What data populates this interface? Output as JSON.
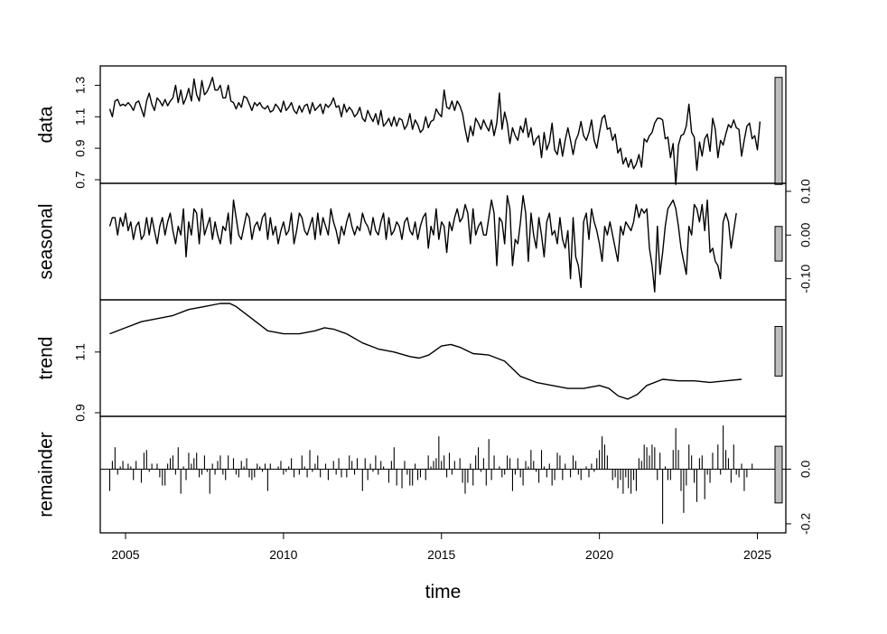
{
  "chart_data": {
    "type": "line",
    "xlabel": "time",
    "x_ticks": [
      2005,
      2010,
      2015,
      2020,
      2025
    ],
    "x_range": [
      2004.2,
      2025.9
    ],
    "start": 2004.5,
    "frequency": 12,
    "panels": [
      {
        "name": "data",
        "ylim": [
          0.7,
          1.4
        ],
        "yticks": [
          0.7,
          0.9,
          1.1,
          1.3
        ],
        "ytick_labels": [
          "0.7",
          "0.9",
          "1.1",
          "1.3"
        ],
        "tick_side": "left",
        "values": [
          1.15,
          1.1,
          1.2,
          1.21,
          1.17,
          1.18,
          1.17,
          1.19,
          1.17,
          1.14,
          1.19,
          1.2,
          1.15,
          1.1,
          1.2,
          1.25,
          1.18,
          1.14,
          1.22,
          1.2,
          1.17,
          1.21,
          1.17,
          1.2,
          1.22,
          1.3,
          1.19,
          1.27,
          1.18,
          1.22,
          1.28,
          1.2,
          1.34,
          1.24,
          1.2,
          1.33,
          1.24,
          1.26,
          1.3,
          1.35,
          1.27,
          1.27,
          1.3,
          1.22,
          1.22,
          1.3,
          1.2,
          1.19,
          1.15,
          1.19,
          1.16,
          1.23,
          1.22,
          1.18,
          1.14,
          1.19,
          1.17,
          1.19,
          1.16,
          1.15,
          1.17,
          1.13,
          1.14,
          1.18,
          1.16,
          1.13,
          1.2,
          1.14,
          1.16,
          1.19,
          1.14,
          1.12,
          1.17,
          1.13,
          1.17,
          1.18,
          1.12,
          1.19,
          1.14,
          1.16,
          1.18,
          1.12,
          1.18,
          1.16,
          1.18,
          1.22,
          1.16,
          1.17,
          1.1,
          1.18,
          1.13,
          1.16,
          1.14,
          1.1,
          1.12,
          1.16,
          1.09,
          1.07,
          1.14,
          1.1,
          1.07,
          1.12,
          1.05,
          1.14,
          1.04,
          1.06,
          1.09,
          1.04,
          1.1,
          1.04,
          1.09,
          1.08,
          1.02,
          1.05,
          1.12,
          1.02,
          1.08,
          1.05,
          1.0,
          1.02,
          1.1,
          1.03,
          1.07,
          1.08,
          1.15,
          1.12,
          1.1,
          1.27,
          1.16,
          1.15,
          1.2,
          1.14,
          1.2,
          1.17,
          1.12,
          1.02,
          0.94,
          1.04,
          0.98,
          1.09,
          1.06,
          1.02,
          1.08,
          1.04,
          1.01,
          1.08,
          0.98,
          1.06,
          1.25,
          1.02,
          1.13,
          1.06,
          0.93,
          1.03,
          0.98,
          0.95,
          1.04,
          1.0,
          1.09,
          0.97,
          1.03,
          0.92,
          0.96,
          0.98,
          0.84,
          1.0,
          0.89,
          0.94,
          1.06,
          0.89,
          0.86,
          0.96,
          0.85,
          0.95,
          1.03,
          0.95,
          0.86,
          0.95,
          0.99,
          1.07,
          0.98,
          0.95,
          1.0,
          1.08,
          0.95,
          0.9,
          1.0,
          1.09,
          1.11,
          1.02,
          1.03,
          0.95,
          0.99,
          0.87,
          0.9,
          0.8,
          0.84,
          0.78,
          0.83,
          0.77,
          0.8,
          0.86,
          0.78,
          0.96,
          0.94,
          0.98,
          1.0,
          1.06,
          1.09,
          1.09,
          1.08,
          0.96,
          0.97,
          0.84,
          0.93,
          0.67,
          0.92,
          0.98,
          0.99,
          1.04,
          1.18,
          1.0,
          0.97,
          0.76,
          0.94,
          0.85,
          0.96,
          0.99,
          0.88,
          1.09,
          1.02,
          0.84,
          0.95,
          0.92,
          0.99,
          1.05,
          1.03,
          1.08,
          1.03,
          1.02,
          0.85,
          0.95,
          1.04,
          1.06,
          0.96,
          0.98,
          0.89,
          1.07
        ]
      },
      {
        "name": "seasonal",
        "ylim": [
          -0.14,
          0.11
        ],
        "yticks": [
          -0.1,
          0.0,
          0.1
        ],
        "ytick_labels": [
          "-0.10",
          "0.00",
          "0.10"
        ],
        "tick_side": "right",
        "values": [
          0.02,
          0.04,
          0.04,
          0.0,
          0.04,
          0.02,
          0.05,
          0.01,
          0.03,
          -0.01,
          0.02,
          0.03,
          -0.01,
          0.0,
          0.04,
          0.0,
          0.04,
          0.01,
          -0.02,
          0.02,
          0.04,
          0.0,
          0.03,
          0.05,
          0.01,
          -0.02,
          0.02,
          0.0,
          0.06,
          -0.05,
          0.03,
          0.0,
          0.06,
          0.05,
          -0.02,
          0.06,
          0.0,
          0.02,
          0.04,
          -0.01,
          0.03,
          0.0,
          -0.02,
          0.02,
          0.01,
          0.05,
          -0.02,
          0.08,
          0.04,
          0.0,
          -0.01,
          0.02,
          0.05,
          0.04,
          -0.01,
          0.02,
          0.03,
          0.01,
          0.04,
          0.05,
          -0.01,
          0.04,
          0.0,
          0.02,
          -0.02,
          0.01,
          0.03,
          0.0,
          0.01,
          0.05,
          -0.02,
          0.01,
          0.05,
          0.04,
          0.01,
          0.0,
          0.02,
          0.04,
          -0.01,
          0.05,
          0.0,
          0.04,
          0.02,
          0.0,
          0.06,
          0.03,
          0.01,
          -0.02,
          0.02,
          0.0,
          0.03,
          0.05,
          0.02,
          0.0,
          0.02,
          0.01,
          0.05,
          0.03,
          0.02,
          0.0,
          0.04,
          0.01,
          0.0,
          0.03,
          0.05,
          -0.01,
          0.04,
          0.0,
          0.01,
          0.03,
          0.02,
          -0.01,
          0.03,
          0.04,
          0.01,
          0.0,
          0.03,
          -0.01,
          0.02,
          0.04,
          0.05,
          -0.03,
          0.02,
          0.0,
          0.06,
          -0.01,
          0.03,
          0.02,
          -0.04,
          0.03,
          0.01,
          0.04,
          0.06,
          0.03,
          0.04,
          0.07,
          0.05,
          -0.02,
          0.06,
          0.0,
          0.02,
          0.03,
          0.0,
          0.0,
          0.04,
          0.08,
          0.05,
          -0.07,
          0.04,
          0.03,
          -0.02,
          0.09,
          0.06,
          -0.07,
          -0.01,
          -0.02,
          0.03,
          0.09,
          0.05,
          -0.06,
          0.05,
          0.0,
          -0.03,
          0.04,
          0.0,
          -0.05,
          0.03,
          0.05,
          0.0,
          0.01,
          -0.02,
          0.04,
          -0.01,
          -0.03,
          0.01,
          -0.1,
          0.04,
          -0.05,
          -0.07,
          -0.12,
          0.03,
          0.05,
          -0.01,
          0.06,
          0.03,
          0.01,
          -0.02,
          -0.06,
          0.02,
          0.0,
          0.03,
          0.0,
          -0.03,
          -0.06,
          0.02,
          0.0,
          0.03,
          0.02,
          0.01,
          0.03,
          0.07,
          0.04,
          0.06,
          0.05,
          0.06,
          -0.03,
          -0.07,
          -0.13,
          0.02,
          -0.09,
          -0.04,
          0.02,
          0.06,
          0.07,
          0.08,
          0.06,
          0.02,
          -0.03,
          -0.06,
          -0.09,
          0.02,
          0.0,
          0.07,
          0.06,
          0.03,
          0.07,
          0.01,
          0.08,
          -0.04,
          -0.03,
          -0.06,
          -0.07,
          -0.1,
          0.03,
          0.05,
          0.03,
          -0.03,
          0.01,
          0.05
        ]
      },
      {
        "name": "trend",
        "ylim": [
          0.9,
          1.26
        ],
        "yticks": [
          0.9,
          1.1
        ],
        "ytick_labels": [
          "0.9",
          "1.1"
        ],
        "tick_side": "left",
        "x": [
          2004.5,
          2005.0,
          2005.5,
          2006.0,
          2006.5,
          2007.0,
          2007.5,
          2008.0,
          2008.3,
          2008.5,
          2009.0,
          2009.5,
          2010.0,
          2010.5,
          2011.0,
          2011.3,
          2011.6,
          2012.0,
          2012.5,
          2013.0,
          2013.5,
          2014.0,
          2014.3,
          2014.6,
          2015.0,
          2015.3,
          2015.6,
          2016.0,
          2016.5,
          2017.0,
          2017.5,
          2018.0,
          2018.5,
          2019.0,
          2019.5,
          2020.0,
          2020.3,
          2020.6,
          2020.9,
          2021.2,
          2021.5,
          2022.0,
          2022.5,
          2023.0,
          2023.5,
          2024.0,
          2024.5
        ],
        "values": [
          1.16,
          1.18,
          1.2,
          1.21,
          1.22,
          1.24,
          1.25,
          1.26,
          1.26,
          1.25,
          1.21,
          1.17,
          1.16,
          1.16,
          1.17,
          1.18,
          1.175,
          1.16,
          1.13,
          1.11,
          1.1,
          1.085,
          1.08,
          1.09,
          1.12,
          1.125,
          1.115,
          1.095,
          1.09,
          1.07,
          1.02,
          1.0,
          0.99,
          0.98,
          0.98,
          0.99,
          0.98,
          0.955,
          0.945,
          0.96,
          0.99,
          1.01,
          1.005,
          1.005,
          1.0,
          1.005,
          1.01
        ]
      },
      {
        "name": "remainder",
        "ylim": [
          -0.22,
          0.18
        ],
        "yticks": [
          -0.2,
          0.0
        ],
        "ytick_labels": [
          "-0.2",
          "0.0"
        ],
        "tick_side": "right",
        "values": [
          -0.08,
          0.03,
          0.08,
          -0.02,
          0.01,
          0.03,
          0.0,
          0.02,
          0.01,
          -0.04,
          0.03,
          0.0,
          -0.05,
          0.06,
          0.07,
          -0.01,
          0.02,
          0.0,
          0.02,
          -0.03,
          -0.06,
          -0.06,
          0.02,
          0.04,
          0.05,
          -0.02,
          0.08,
          -0.09,
          0.01,
          -0.04,
          0.06,
          0.02,
          0.04,
          0.06,
          -0.03,
          -0.02,
          0.05,
          -0.01,
          -0.09,
          0.02,
          -0.02,
          0.03,
          0.05,
          -0.02,
          -0.04,
          0.05,
          0.0,
          0.04,
          -0.02,
          -0.03,
          0.03,
          0.01,
          0.04,
          -0.03,
          -0.04,
          -0.03,
          0.02,
          0.01,
          -0.01,
          0.02,
          -0.08,
          0.02,
          0.0,
          0.0,
          0.01,
          0.03,
          -0.02,
          -0.01,
          0.01,
          0.04,
          -0.03,
          0.0,
          -0.02,
          0.05,
          0.01,
          -0.03,
          0.07,
          -0.01,
          0.02,
          0.05,
          -0.03,
          0.0,
          0.02,
          -0.04,
          0.0,
          0.03,
          -0.02,
          0.04,
          -0.03,
          0.0,
          -0.03,
          0.05,
          0.03,
          -0.02,
          0.04,
          0.0,
          -0.08,
          0.04,
          -0.04,
          0.02,
          -0.01,
          0.05,
          -0.02,
          0.03,
          0.01,
          0.0,
          -0.05,
          0.03,
          0.08,
          -0.06,
          0.0,
          -0.07,
          0.03,
          -0.02,
          -0.06,
          -0.06,
          0.02,
          -0.04,
          -0.03,
          0.0,
          -0.04,
          0.05,
          0.01,
          0.03,
          0.04,
          0.12,
          0.03,
          0.05,
          -0.03,
          0.06,
          -0.02,
          0.03,
          0.0,
          0.04,
          -0.05,
          -0.09,
          -0.05,
          0.02,
          -0.06,
          0.05,
          0.08,
          -0.01,
          0.04,
          -0.06,
          0.11,
          -0.04,
          0.05,
          0.0,
          0.01,
          -0.03,
          -0.02,
          0.05,
          0.04,
          -0.08,
          -0.02,
          0.04,
          -0.03,
          -0.06,
          0.03,
          0.01,
          0.07,
          0.03,
          -0.01,
          -0.05,
          0.07,
          0.01,
          -0.03,
          0.02,
          -0.06,
          -0.04,
          0.06,
          0.05,
          -0.04,
          0.02,
          0.0,
          -0.03,
          0.05,
          0.03,
          -0.02,
          -0.04,
          0.0,
          0.01,
          -0.03,
          0.02,
          -0.01,
          0.04,
          0.07,
          0.12,
          0.09,
          0.05,
          0.0,
          -0.04,
          -0.03,
          -0.07,
          -0.04,
          -0.09,
          -0.03,
          -0.07,
          -0.09,
          -0.04,
          -0.08,
          0.04,
          0.03,
          0.09,
          0.08,
          0.05,
          0.09,
          0.08,
          -0.04,
          0.06,
          -0.2,
          0.01,
          -0.04,
          -0.04,
          0.07,
          0.15,
          0.07,
          -0.08,
          -0.16,
          -0.06,
          0.09,
          0.05,
          -0.05,
          -0.12,
          0.04,
          0.05,
          -0.11,
          -0.02,
          -0.05,
          0.06,
          0.0,
          0.09,
          -0.02,
          0.16,
          0.07,
          0.04,
          -0.05,
          0.09,
          -0.02,
          -0.03,
          0.02,
          -0.08,
          -0.03,
          0.0,
          0.02
        ]
      }
    ]
  }
}
